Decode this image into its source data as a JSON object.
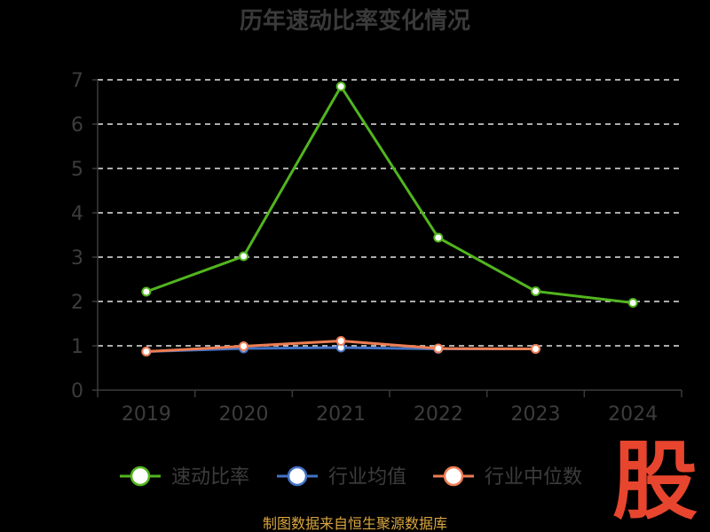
{
  "chart_data": {
    "type": "line",
    "title": "历年速动比率变化情况",
    "categories": [
      "2019",
      "2020",
      "2021",
      "2022",
      "2023",
      "2024"
    ],
    "ylim": [
      0,
      7
    ],
    "yticks": [
      "0",
      "1",
      "2",
      "3",
      "4",
      "5",
      "6",
      "7"
    ],
    "grid": "horizontal dashed",
    "legend_position": "bottom",
    "series": [
      {
        "name": "速动比率",
        "color": "#52b51f",
        "values": [
          2.22,
          3.02,
          6.85,
          3.44,
          2.23,
          1.97
        ]
      },
      {
        "name": "行业均值",
        "color": "#4472c4",
        "values": [
          0.87,
          0.94,
          0.96,
          0.93,
          0.93,
          null
        ]
      },
      {
        "name": "行业中位数",
        "color": "#ed7d52",
        "values": [
          0.87,
          0.99,
          1.11,
          0.94,
          0.93,
          null
        ]
      }
    ]
  },
  "footer": {
    "source": "制图数据来自恒生聚源数据库"
  },
  "brand": {
    "logo_text": "股",
    "color": "#e8452e"
  }
}
